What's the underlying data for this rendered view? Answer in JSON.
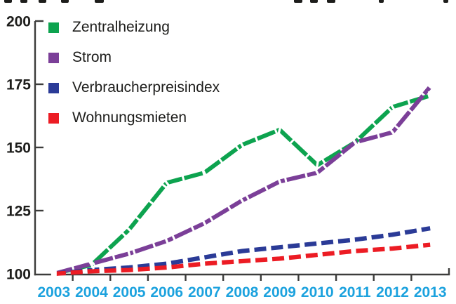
{
  "chart_data": {
    "type": "line",
    "title": "",
    "xlabel": "",
    "ylabel": "",
    "categories": [
      "2003",
      "2004",
      "2005",
      "2006",
      "2007",
      "2008",
      "2009",
      "2010",
      "2011",
      "2012",
      "2013"
    ],
    "y_ticks": [
      100,
      125,
      150,
      175,
      200
    ],
    "ylim": [
      100,
      200
    ],
    "grid": false,
    "legend_position": "top-left",
    "axis_color": "#3c3c3b",
    "y_tick_label_color": "#1d1d1b",
    "x_tick_label_color": "#1ca2de",
    "series": [
      {
        "name": "Zentralheizung",
        "color": "#0da34f",
        "line_style": "solid-with-white-nicks",
        "values": [
          100,
          103.5,
          117.5,
          136,
          140,
          151,
          157,
          143,
          152,
          166,
          170.5
        ]
      },
      {
        "name": "Strom",
        "color": "#7b3f98",
        "line_style": "solid-with-white-nicks",
        "values": [
          100,
          104,
          108,
          113,
          120,
          129,
          136.5,
          140,
          152,
          156,
          174
        ]
      },
      {
        "name": "Verbraucherpreisindex",
        "color": "#2b3b97",
        "line_style": "dashed",
        "values": [
          100,
          101.5,
          102.5,
          104,
          106.5,
          109,
          110.5,
          112,
          113.5,
          115.5,
          118
        ]
      },
      {
        "name": "Wohnungsmieten",
        "color": "#ec1c24",
        "line_style": "dashed",
        "values": [
          100,
          101,
          101.5,
          102.5,
          104,
          105,
          106,
          107.5,
          109,
          110,
          111.5
        ]
      }
    ]
  }
}
